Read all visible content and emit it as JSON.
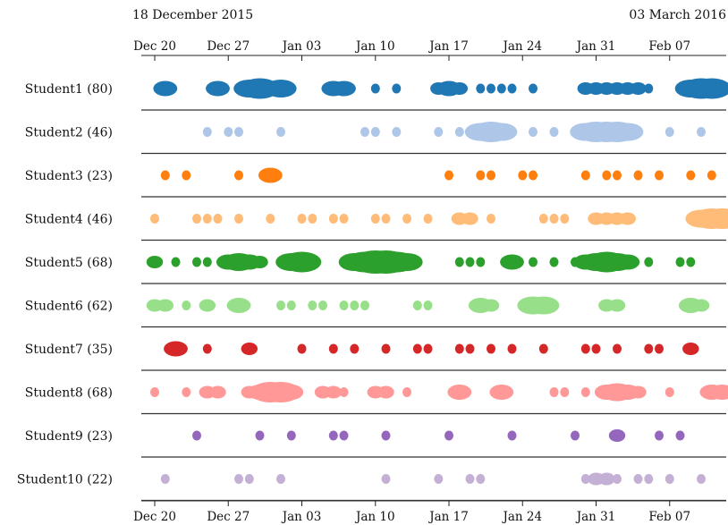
{
  "chart_data": {
    "type": "scatter",
    "start_label": "18 December 2015",
    "end_label": "03 March 2016",
    "x_ticks": [
      "Dec 20",
      "Dec 27",
      "Jan 03",
      "Jan 10",
      "Jan 17",
      "Jan 24",
      "Jan 31",
      "Feb 07"
    ],
    "x_range": [
      "2015-12-20",
      "2016-02-12"
    ],
    "series": [
      {
        "name": "Student1 (80)",
        "color": "#1f77b4",
        "events": [
          {
            "date": "2015-12-21",
            "size": 3
          },
          {
            "date": "2015-12-26",
            "size": 3
          },
          {
            "date": "2015-12-29",
            "size": 4
          },
          {
            "date": "2015-12-30",
            "size": 5
          },
          {
            "date": "2016-01-01",
            "size": 4
          },
          {
            "date": "2016-01-02",
            "size": 1
          },
          {
            "date": "2016-01-06",
            "size": 3
          },
          {
            "date": "2016-01-07",
            "size": 3
          },
          {
            "date": "2016-01-10",
            "size": 1
          },
          {
            "date": "2016-01-12",
            "size": 1
          },
          {
            "date": "2016-01-16",
            "size": 2
          },
          {
            "date": "2016-01-17",
            "size": 3
          },
          {
            "date": "2016-01-18",
            "size": 2
          },
          {
            "date": "2016-01-20",
            "size": 1
          },
          {
            "date": "2016-01-21",
            "size": 1
          },
          {
            "date": "2016-01-22",
            "size": 1
          },
          {
            "date": "2016-01-23",
            "size": 1
          },
          {
            "date": "2016-01-25",
            "size": 1
          },
          {
            "date": "2016-01-30",
            "size": 2
          },
          {
            "date": "2016-01-31",
            "size": 2
          },
          {
            "date": "2016-02-01",
            "size": 2
          },
          {
            "date": "2016-02-02",
            "size": 2
          },
          {
            "date": "2016-02-03",
            "size": 2
          },
          {
            "date": "2016-02-04",
            "size": 2
          },
          {
            "date": "2016-02-05",
            "size": 1
          },
          {
            "date": "2016-02-09",
            "size": 4
          },
          {
            "date": "2016-02-10",
            "size": 5
          },
          {
            "date": "2016-02-11",
            "size": 5
          }
        ]
      },
      {
        "name": "Student2 (46)",
        "color": "#aec7e8",
        "events": [
          {
            "date": "2015-12-25",
            "size": 1
          },
          {
            "date": "2015-12-27",
            "size": 1
          },
          {
            "date": "2015-12-28",
            "size": 1
          },
          {
            "date": "2016-01-01",
            "size": 1
          },
          {
            "date": "2016-01-09",
            "size": 1
          },
          {
            "date": "2016-01-10",
            "size": 1
          },
          {
            "date": "2016-01-12",
            "size": 1
          },
          {
            "date": "2016-01-16",
            "size": 1
          },
          {
            "date": "2016-01-18",
            "size": 1
          },
          {
            "date": "2016-01-20",
            "size": 4
          },
          {
            "date": "2016-01-21",
            "size": 5
          },
          {
            "date": "2016-01-22",
            "size": 4
          },
          {
            "date": "2016-01-25",
            "size": 1
          },
          {
            "date": "2016-01-27",
            "size": 1
          },
          {
            "date": "2016-01-30",
            "size": 4
          },
          {
            "date": "2016-01-31",
            "size": 5
          },
          {
            "date": "2016-02-01",
            "size": 5
          },
          {
            "date": "2016-02-02",
            "size": 5
          },
          {
            "date": "2016-02-03",
            "size": 4
          },
          {
            "date": "2016-02-07",
            "size": 1
          },
          {
            "date": "2016-02-10",
            "size": 1
          }
        ]
      },
      {
        "name": "Student3 (23)",
        "color": "#ff7f0e",
        "events": [
          {
            "date": "2015-12-21",
            "size": 1
          },
          {
            "date": "2015-12-23",
            "size": 1
          },
          {
            "date": "2015-12-28",
            "size": 1
          },
          {
            "date": "2015-12-31",
            "size": 3
          },
          {
            "date": "2016-01-17",
            "size": 1
          },
          {
            "date": "2016-01-20",
            "size": 1
          },
          {
            "date": "2016-01-21",
            "size": 1
          },
          {
            "date": "2016-01-24",
            "size": 1
          },
          {
            "date": "2016-01-25",
            "size": 1
          },
          {
            "date": "2016-01-30",
            "size": 1
          },
          {
            "date": "2016-02-01",
            "size": 1
          },
          {
            "date": "2016-02-02",
            "size": 1
          },
          {
            "date": "2016-02-04",
            "size": 1
          },
          {
            "date": "2016-02-06",
            "size": 1
          },
          {
            "date": "2016-02-09",
            "size": 1
          },
          {
            "date": "2016-02-11",
            "size": 1
          }
        ]
      },
      {
        "name": "Student4 (46)",
        "color": "#ffbb78",
        "events": [
          {
            "date": "2015-12-20",
            "size": 1
          },
          {
            "date": "2015-12-24",
            "size": 1
          },
          {
            "date": "2015-12-25",
            "size": 1
          },
          {
            "date": "2015-12-26",
            "size": 1
          },
          {
            "date": "2015-12-28",
            "size": 1
          },
          {
            "date": "2015-12-31",
            "size": 1
          },
          {
            "date": "2016-01-03",
            "size": 1
          },
          {
            "date": "2016-01-04",
            "size": 1
          },
          {
            "date": "2016-01-06",
            "size": 1
          },
          {
            "date": "2016-01-07",
            "size": 1
          },
          {
            "date": "2016-01-10",
            "size": 1
          },
          {
            "date": "2016-01-11",
            "size": 1
          },
          {
            "date": "2016-01-13",
            "size": 1
          },
          {
            "date": "2016-01-15",
            "size": 1
          },
          {
            "date": "2016-01-18",
            "size": 2
          },
          {
            "date": "2016-01-19",
            "size": 2
          },
          {
            "date": "2016-01-21",
            "size": 1
          },
          {
            "date": "2016-01-26",
            "size": 1
          },
          {
            "date": "2016-01-27",
            "size": 1
          },
          {
            "date": "2016-01-28",
            "size": 1
          },
          {
            "date": "2016-01-31",
            "size": 2
          },
          {
            "date": "2016-02-01",
            "size": 2
          },
          {
            "date": "2016-02-02",
            "size": 2
          },
          {
            "date": "2016-02-03",
            "size": 2
          },
          {
            "date": "2016-02-10",
            "size": 4
          },
          {
            "date": "2016-02-11",
            "size": 5
          },
          {
            "date": "2016-02-12",
            "size": 5
          }
        ]
      },
      {
        "name": "Student5 (68)",
        "color": "#2ca02c",
        "events": [
          {
            "date": "2015-12-20",
            "size": 2
          },
          {
            "date": "2015-12-22",
            "size": 1
          },
          {
            "date": "2015-12-24",
            "size": 1
          },
          {
            "date": "2015-12-25",
            "size": 1
          },
          {
            "date": "2015-12-27",
            "size": 3
          },
          {
            "date": "2015-12-28",
            "size": 4
          },
          {
            "date": "2015-12-29",
            "size": 3
          },
          {
            "date": "2015-12-30",
            "size": 2
          },
          {
            "date": "2016-01-02",
            "size": 4
          },
          {
            "date": "2016-01-03",
            "size": 5
          },
          {
            "date": "2016-01-04",
            "size": 2
          },
          {
            "date": "2016-01-08",
            "size": 4
          },
          {
            "date": "2016-01-09",
            "size": 5
          },
          {
            "date": "2016-01-10",
            "size": 6
          },
          {
            "date": "2016-01-11",
            "size": 6
          },
          {
            "date": "2016-01-12",
            "size": 5
          },
          {
            "date": "2016-01-13",
            "size": 4
          },
          {
            "date": "2016-01-18",
            "size": 1
          },
          {
            "date": "2016-01-19",
            "size": 1
          },
          {
            "date": "2016-01-20",
            "size": 1
          },
          {
            "date": "2016-01-23",
            "size": 3
          },
          {
            "date": "2016-01-25",
            "size": 1
          },
          {
            "date": "2016-01-27",
            "size": 1
          },
          {
            "date": "2016-01-29",
            "size": 1
          },
          {
            "date": "2016-01-30",
            "size": 3
          },
          {
            "date": "2016-01-31",
            "size": 4
          },
          {
            "date": "2016-02-01",
            "size": 5
          },
          {
            "date": "2016-02-02",
            "size": 4
          },
          {
            "date": "2016-02-03",
            "size": 3
          },
          {
            "date": "2016-02-05",
            "size": 1
          },
          {
            "date": "2016-02-08",
            "size": 1
          },
          {
            "date": "2016-02-09",
            "size": 1
          }
        ]
      },
      {
        "name": "Student6 (62)",
        "color": "#98df8a",
        "events": [
          {
            "date": "2015-12-20",
            "size": 2
          },
          {
            "date": "2015-12-21",
            "size": 2
          },
          {
            "date": "2015-12-23",
            "size": 1
          },
          {
            "date": "2015-12-25",
            "size": 2
          },
          {
            "date": "2015-12-28",
            "size": 3
          },
          {
            "date": "2016-01-01",
            "size": 1
          },
          {
            "date": "2016-01-02",
            "size": 1
          },
          {
            "date": "2016-01-04",
            "size": 1
          },
          {
            "date": "2016-01-05",
            "size": 1
          },
          {
            "date": "2016-01-07",
            "size": 1
          },
          {
            "date": "2016-01-08",
            "size": 1
          },
          {
            "date": "2016-01-09",
            "size": 1
          },
          {
            "date": "2016-01-14",
            "size": 1
          },
          {
            "date": "2016-01-15",
            "size": 1
          },
          {
            "date": "2016-01-20",
            "size": 3
          },
          {
            "date": "2016-01-21",
            "size": 2
          },
          {
            "date": "2016-01-25",
            "size": 4
          },
          {
            "date": "2016-01-26",
            "size": 4
          },
          {
            "date": "2016-02-01",
            "size": 2
          },
          {
            "date": "2016-02-02",
            "size": 2
          },
          {
            "date": "2016-02-09",
            "size": 3
          },
          {
            "date": "2016-02-10",
            "size": 2
          }
        ]
      },
      {
        "name": "Student7 (35)",
        "color": "#d62728",
        "events": [
          {
            "date": "2015-12-22",
            "size": 3
          },
          {
            "date": "2015-12-25",
            "size": 1
          },
          {
            "date": "2015-12-29",
            "size": 2
          },
          {
            "date": "2016-01-03",
            "size": 1
          },
          {
            "date": "2016-01-06",
            "size": 1
          },
          {
            "date": "2016-01-08",
            "size": 1
          },
          {
            "date": "2016-01-11",
            "size": 1
          },
          {
            "date": "2016-01-14",
            "size": 1
          },
          {
            "date": "2016-01-15",
            "size": 1
          },
          {
            "date": "2016-01-18",
            "size": 1
          },
          {
            "date": "2016-01-19",
            "size": 1
          },
          {
            "date": "2016-01-21",
            "size": 1
          },
          {
            "date": "2016-01-23",
            "size": 1
          },
          {
            "date": "2016-01-26",
            "size": 1
          },
          {
            "date": "2016-01-30",
            "size": 1
          },
          {
            "date": "2016-01-31",
            "size": 1
          },
          {
            "date": "2016-02-02",
            "size": 1
          },
          {
            "date": "2016-02-05",
            "size": 1
          },
          {
            "date": "2016-02-06",
            "size": 1
          },
          {
            "date": "2016-02-09",
            "size": 2
          }
        ]
      },
      {
        "name": "Student8 (68)",
        "color": "#ff9896",
        "events": [
          {
            "date": "2015-12-20",
            "size": 1
          },
          {
            "date": "2015-12-23",
            "size": 1
          },
          {
            "date": "2015-12-25",
            "size": 2
          },
          {
            "date": "2015-12-26",
            "size": 2
          },
          {
            "date": "2015-12-29",
            "size": 2
          },
          {
            "date": "2015-12-30",
            "size": 3
          },
          {
            "date": "2015-12-31",
            "size": 5
          },
          {
            "date": "2016-01-01",
            "size": 5
          },
          {
            "date": "2016-01-02",
            "size": 3
          },
          {
            "date": "2016-01-05",
            "size": 2
          },
          {
            "date": "2016-01-06",
            "size": 2
          },
          {
            "date": "2016-01-07",
            "size": 1
          },
          {
            "date": "2016-01-10",
            "size": 2
          },
          {
            "date": "2016-01-11",
            "size": 2
          },
          {
            "date": "2016-01-13",
            "size": 1
          },
          {
            "date": "2016-01-18",
            "size": 3
          },
          {
            "date": "2016-01-22",
            "size": 3
          },
          {
            "date": "2016-01-27",
            "size": 1
          },
          {
            "date": "2016-01-28",
            "size": 1
          },
          {
            "date": "2016-01-30",
            "size": 1
          },
          {
            "date": "2016-02-01",
            "size": 3
          },
          {
            "date": "2016-02-02",
            "size": 4
          },
          {
            "date": "2016-02-03",
            "size": 3
          },
          {
            "date": "2016-02-04",
            "size": 2
          },
          {
            "date": "2016-02-07",
            "size": 1
          },
          {
            "date": "2016-02-11",
            "size": 3
          },
          {
            "date": "2016-02-12",
            "size": 3
          }
        ]
      },
      {
        "name": "Student9 (23)",
        "color": "#9467bd",
        "events": [
          {
            "date": "2015-12-24",
            "size": 1
          },
          {
            "date": "2015-12-30",
            "size": 1
          },
          {
            "date": "2016-01-02",
            "size": 1
          },
          {
            "date": "2016-01-06",
            "size": 1
          },
          {
            "date": "2016-01-07",
            "size": 1
          },
          {
            "date": "2016-01-11",
            "size": 1
          },
          {
            "date": "2016-01-17",
            "size": 1
          },
          {
            "date": "2016-01-23",
            "size": 1
          },
          {
            "date": "2016-01-29",
            "size": 1
          },
          {
            "date": "2016-02-02",
            "size": 2
          },
          {
            "date": "2016-02-06",
            "size": 1
          },
          {
            "date": "2016-02-08",
            "size": 1
          }
        ]
      },
      {
        "name": "Student10 (22)",
        "color": "#c5b0d5",
        "events": [
          {
            "date": "2015-12-21",
            "size": 1
          },
          {
            "date": "2015-12-28",
            "size": 1
          },
          {
            "date": "2015-12-29",
            "size": 1
          },
          {
            "date": "2016-01-01",
            "size": 1
          },
          {
            "date": "2016-01-11",
            "size": 1
          },
          {
            "date": "2016-01-16",
            "size": 1
          },
          {
            "date": "2016-01-19",
            "size": 1
          },
          {
            "date": "2016-01-20",
            "size": 1
          },
          {
            "date": "2016-01-30",
            "size": 1
          },
          {
            "date": "2016-01-31",
            "size": 2
          },
          {
            "date": "2016-02-01",
            "size": 2
          },
          {
            "date": "2016-02-02",
            "size": 1
          },
          {
            "date": "2016-02-04",
            "size": 1
          },
          {
            "date": "2016-02-05",
            "size": 1
          },
          {
            "date": "2016-02-07",
            "size": 1
          },
          {
            "date": "2016-02-10",
            "size": 1
          }
        ]
      }
    ]
  }
}
